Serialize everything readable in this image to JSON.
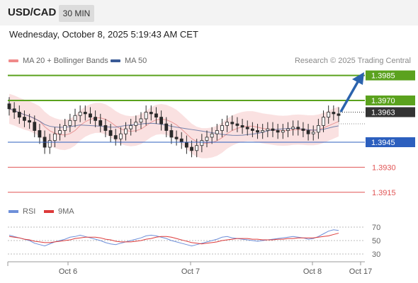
{
  "header": {
    "symbol": "USD/CAD",
    "timeframe_button": "30 MIN"
  },
  "datetime": "Wednesday, October 8, 2025 5:19:43 AM CET",
  "legend": {
    "ma20_bb": "MA 20 + Bollinger Bands",
    "ma50": "MA 50",
    "credit": "Research © 2025 Trading Central"
  },
  "rsi_legend": {
    "rsi": "RSI",
    "ma9": "9MA"
  },
  "colors": {
    "resistance": "#5ba21e",
    "support": "#2c5fbe",
    "target": "#e15555",
    "current_price_bg": "#333333",
    "arrow": "#2b63ad",
    "bollinger": "#f9dada",
    "ma20": "#e99999",
    "ma50": "#3a5a96",
    "rsi_line": "#6e8fd9",
    "rsi_ma": "#dd3a3a",
    "candle": "#2a2a2a"
  },
  "chart_data": {
    "type": "candlestick",
    "price_levels": [
      {
        "value": 1.3985,
        "label": "1.3985",
        "kind": "resistance"
      },
      {
        "value": 1.397,
        "label": "1.3970",
        "kind": "resistance"
      },
      {
        "value": 1.3963,
        "label": "1.3963",
        "kind": "current"
      },
      {
        "value": 1.3945,
        "label": "1.3945",
        "kind": "support"
      },
      {
        "value": 1.393,
        "label": "1.3930",
        "kind": "target"
      },
      {
        "value": 1.3915,
        "label": "1.3915",
        "kind": "target"
      }
    ],
    "x_ticks": [
      "Oct 6",
      "Oct 7",
      "Oct 8",
      "Oct 17"
    ],
    "close_series": [
      1.3965,
      1.3963,
      1.396,
      1.3958,
      1.3957,
      1.3952,
      1.3948,
      1.3942,
      1.3946,
      1.395,
      1.3952,
      1.3955,
      1.3958,
      1.3961,
      1.3963,
      1.3962,
      1.396,
      1.3958,
      1.3955,
      1.3952,
      1.3949,
      1.3947,
      1.395,
      1.3953,
      1.3955,
      1.3957,
      1.3959,
      1.3963,
      1.3962,
      1.396,
      1.3956,
      1.3952,
      1.3948,
      1.3947,
      1.3945,
      1.3942,
      1.394,
      1.3943,
      1.3946,
      1.3948,
      1.395,
      1.3952,
      1.3955,
      1.3957,
      1.3956,
      1.3955,
      1.3954,
      1.3953,
      1.3952,
      1.3951,
      1.3952,
      1.3953,
      1.3952,
      1.3951,
      1.3952,
      1.3953,
      1.3954,
      1.3953,
      1.3952,
      1.395,
      1.3951,
      1.3955,
      1.396,
      1.3963,
      1.3962,
      1.3961
    ],
    "rsi": {
      "ticks": [
        70,
        50,
        30
      ],
      "ylim": [
        20,
        80
      ],
      "values": [
        58,
        56,
        54,
        52,
        50,
        46,
        44,
        42,
        45,
        48,
        50,
        52,
        55,
        56,
        58,
        56,
        54,
        52,
        50,
        47,
        45,
        44,
        46,
        48,
        50,
        52,
        54,
        57,
        58,
        57,
        55,
        53,
        50,
        48,
        46,
        44,
        42,
        44,
        46,
        48,
        50,
        52,
        55,
        56,
        54,
        53,
        52,
        51,
        50,
        49,
        50,
        51,
        52,
        53,
        54,
        55,
        56,
        55,
        54,
        52,
        53,
        56,
        60,
        64,
        66,
        65
      ],
      "ma9": [
        56,
        55,
        54,
        52,
        51,
        49,
        48,
        47,
        47,
        48,
        49,
        50,
        51,
        53,
        54,
        55,
        55,
        55,
        54,
        52,
        51,
        49,
        48,
        48,
        48,
        49,
        50,
        52,
        53,
        55,
        56,
        56,
        55,
        53,
        51,
        49,
        47,
        46,
        45,
        46,
        47,
        48,
        50,
        51,
        52,
        53,
        53,
        53,
        52,
        52,
        51,
        51,
        51,
        52,
        52,
        53,
        53,
        54,
        54,
        54,
        54,
        55,
        56,
        57,
        59,
        61
      ]
    }
  }
}
